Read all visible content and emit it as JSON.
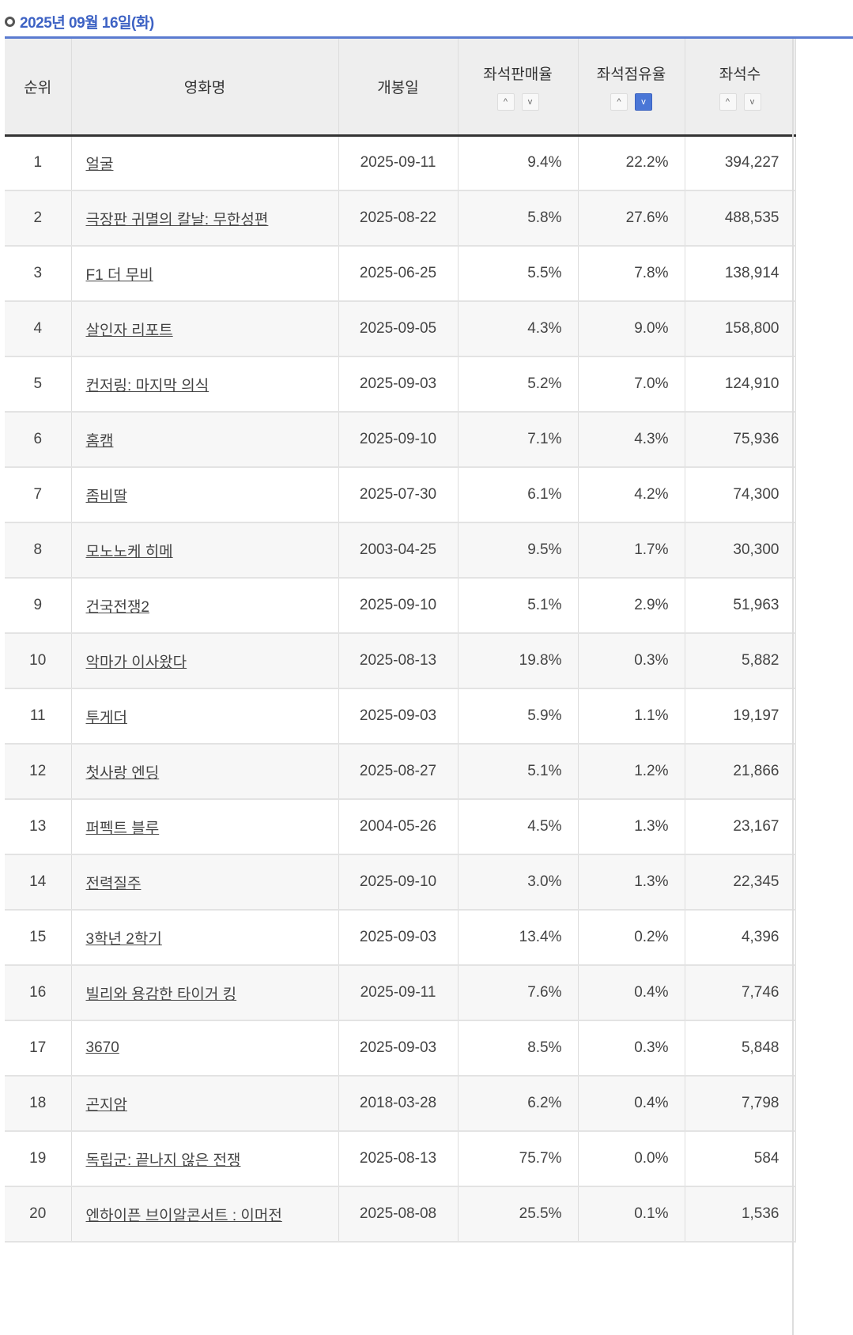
{
  "title": "2025년 09월 16일(화)",
  "headers": {
    "rank": "순위",
    "name": "영화명",
    "open": "개봉일",
    "sales": "좌석판매율",
    "share": "좌석점유율",
    "seats": "좌석수"
  },
  "sort": {
    "up": "^",
    "down": "v"
  },
  "accent": "#4a76d6",
  "rows": [
    [
      "1",
      "얼굴",
      "2025-09-11",
      "9.4%",
      "22.2%",
      "394,227"
    ],
    [
      "2",
      "극장판 귀멸의 칼날: 무한성편",
      "2025-08-22",
      "5.8%",
      "27.6%",
      "488,535"
    ],
    [
      "3",
      "F1 더 무비",
      "2025-06-25",
      "5.5%",
      "7.8%",
      "138,914"
    ],
    [
      "4",
      "살인자 리포트",
      "2025-09-05",
      "4.3%",
      "9.0%",
      "158,800"
    ],
    [
      "5",
      "컨저링: 마지막 의식",
      "2025-09-03",
      "5.2%",
      "7.0%",
      "124,910"
    ],
    [
      "6",
      "홈캠",
      "2025-09-10",
      "7.1%",
      "4.3%",
      "75,936"
    ],
    [
      "7",
      "좀비딸",
      "2025-07-30",
      "6.1%",
      "4.2%",
      "74,300"
    ],
    [
      "8",
      "모노노케 히메",
      "2003-04-25",
      "9.5%",
      "1.7%",
      "30,300"
    ],
    [
      "9",
      "건국전쟁2",
      "2025-09-10",
      "5.1%",
      "2.9%",
      "51,963"
    ],
    [
      "10",
      "악마가 이사왔다",
      "2025-08-13",
      "19.8%",
      "0.3%",
      "5,882"
    ],
    [
      "11",
      "투게더",
      "2025-09-03",
      "5.9%",
      "1.1%",
      "19,197"
    ],
    [
      "12",
      "첫사랑 엔딩",
      "2025-08-27",
      "5.1%",
      "1.2%",
      "21,866"
    ],
    [
      "13",
      "퍼펙트 블루",
      "2004-05-26",
      "4.5%",
      "1.3%",
      "23,167"
    ],
    [
      "14",
      "전력질주",
      "2025-09-10",
      "3.0%",
      "1.3%",
      "22,345"
    ],
    [
      "15",
      "3학년 2학기",
      "2025-09-03",
      "13.4%",
      "0.2%",
      "4,396"
    ],
    [
      "16",
      "빌리와 용감한 타이거 킹",
      "2025-09-11",
      "7.6%",
      "0.4%",
      "7,746"
    ],
    [
      "17",
      "3670",
      "2025-09-03",
      "8.5%",
      "0.3%",
      "5,848"
    ],
    [
      "18",
      "곤지암",
      "2018-03-28",
      "6.2%",
      "0.4%",
      "7,798"
    ],
    [
      "19",
      "독립군: 끝나지 않은 전쟁",
      "2025-08-13",
      "75.7%",
      "0.0%",
      "584"
    ],
    [
      "20",
      "엔하이픈 브이알콘서트 : 이머전",
      "2025-08-08",
      "25.5%",
      "0.1%",
      "1,536"
    ]
  ]
}
